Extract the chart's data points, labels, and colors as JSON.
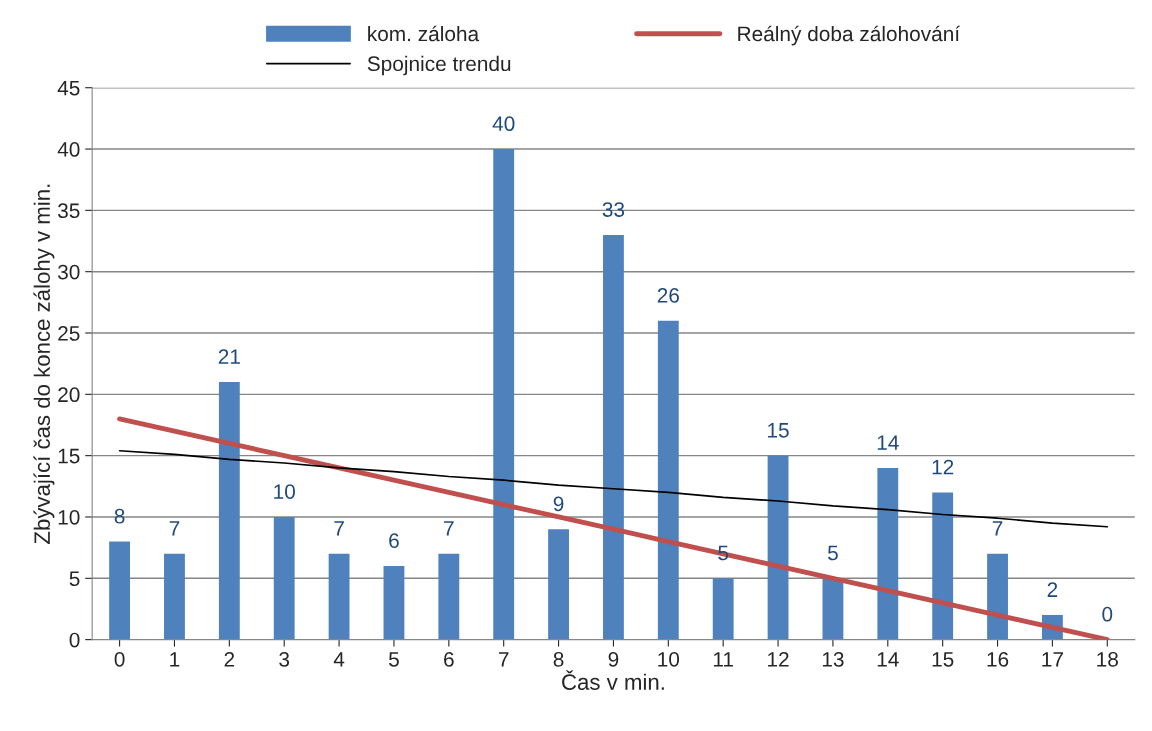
{
  "chart_data": {
    "type": "bar",
    "xlabel": "Čas v min.",
    "ylabel": "Zbývající čas do konce zálohy v min.",
    "categories": [
      "0",
      "1",
      "2",
      "3",
      "4",
      "5",
      "6",
      "7",
      "8",
      "9",
      "10",
      "11",
      "12",
      "13",
      "14",
      "15",
      "16",
      "17",
      "18"
    ],
    "series": [
      {
        "name": "kom. záloha",
        "color": "#4f81bd",
        "values": [
          8,
          7,
          21,
          10,
          7,
          6,
          7,
          40,
          9,
          33,
          26,
          5,
          15,
          5,
          14,
          12,
          7,
          2,
          0
        ],
        "value_labels": [
          "8",
          "7",
          "21",
          "10",
          "7",
          "6",
          "7",
          "40",
          "9",
          "33",
          "26",
          "5",
          "15",
          "5",
          "14",
          "12",
          "7",
          "2",
          "0"
        ]
      },
      {
        "name": "Reálný doba zálohování",
        "type": "line",
        "color": "#c0504d",
        "values": [
          18,
          17,
          16,
          15,
          14,
          13,
          12,
          11,
          10,
          9,
          8,
          7,
          6,
          5,
          4,
          3,
          2,
          1,
          0
        ]
      },
      {
        "name": "Spojnice trendu",
        "type": "line",
        "color": "#000000",
        "values": [
          15.4,
          15.1,
          14.7,
          14.4,
          14.0,
          13.7,
          13.3,
          13.0,
          12.6,
          12.3,
          12.0,
          11.6,
          11.3,
          10.9,
          10.6,
          10.2,
          9.9,
          9.5,
          9.2
        ]
      }
    ],
    "ylim": [
      0,
      45
    ],
    "yticks": [
      0,
      5,
      10,
      15,
      20,
      25,
      30,
      35,
      40,
      45
    ],
    "grid": "y",
    "legend": "top",
    "marker": "none",
    "line_style": "solid"
  }
}
